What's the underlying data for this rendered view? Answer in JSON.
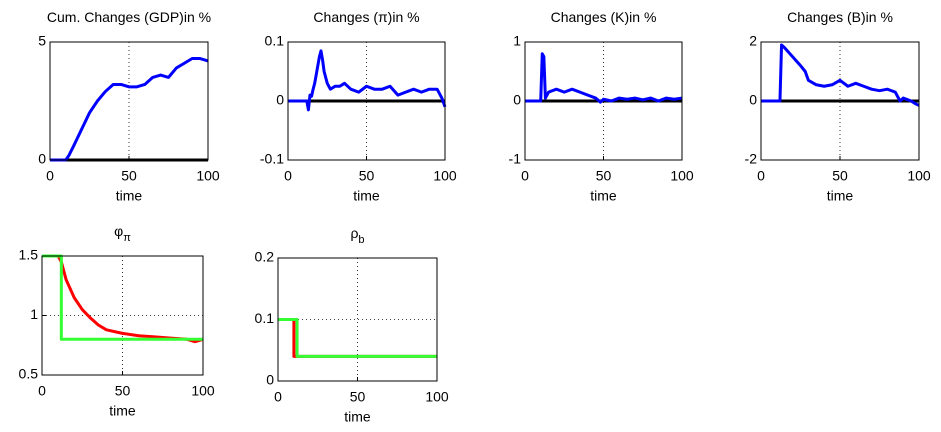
{
  "chart_data": [
    {
      "type": "line",
      "title": "Cum. Changes (GDP)in %",
      "xlabel": "time",
      "xlim": [
        0,
        100
      ],
      "xticks": [
        0,
        50,
        100
      ],
      "ylim": [
        0,
        5
      ],
      "yticks": [
        0,
        5
      ],
      "grid": true,
      "series": [
        {
          "color": "#000000",
          "x": [
            0,
            100
          ],
          "values": [
            0,
            0
          ]
        },
        {
          "color": "#0000ff",
          "x": [
            0,
            10,
            12,
            15,
            20,
            25,
            30,
            35,
            40,
            45,
            50,
            55,
            60,
            65,
            70,
            75,
            80,
            85,
            90,
            95,
            100
          ],
          "values": [
            0,
            0,
            0.2,
            0.6,
            1.3,
            2,
            2.5,
            2.9,
            3.2,
            3.2,
            3.1,
            3.1,
            3.2,
            3.5,
            3.6,
            3.5,
            3.9,
            4.1,
            4.3,
            4.3,
            4.2
          ]
        }
      ]
    },
    {
      "type": "line",
      "title": "Changes (π)in %",
      "xlabel": "time",
      "xlim": [
        0,
        100
      ],
      "xticks": [
        0,
        50,
        100
      ],
      "ylim": [
        -0.1,
        0.1
      ],
      "yticks": [
        -0.1,
        0,
        0.1
      ],
      "grid": true,
      "series": [
        {
          "color": "#000000",
          "x": [
            0,
            100
          ],
          "values": [
            0,
            0
          ]
        },
        {
          "color": "#0000ff",
          "x": [
            0,
            12,
            13,
            14,
            15,
            16,
            17,
            18,
            19,
            20,
            21,
            22,
            23,
            25,
            27,
            30,
            33,
            36,
            40,
            45,
            50,
            55,
            60,
            65,
            70,
            75,
            80,
            85,
            90,
            95,
            98,
            100
          ],
          "values": [
            0,
            0,
            -0.015,
            0.01,
            0.008,
            0.02,
            0.03,
            0.045,
            0.06,
            0.075,
            0.085,
            0.07,
            0.05,
            0.03,
            0.02,
            0.025,
            0.025,
            0.03,
            0.02,
            0.015,
            0.025,
            0.02,
            0.02,
            0.025,
            0.01,
            0.015,
            0.02,
            0.015,
            0.02,
            0.02,
            0.005,
            -0.01
          ]
        }
      ]
    },
    {
      "type": "line",
      "title": "Changes (K)in %",
      "xlabel": "time",
      "xlim": [
        0,
        100
      ],
      "xticks": [
        0,
        50,
        100
      ],
      "ylim": [
        -1,
        1
      ],
      "yticks": [
        -1,
        0,
        1
      ],
      "grid": true,
      "series": [
        {
          "color": "#000000",
          "x": [
            0,
            100
          ],
          "values": [
            0,
            0
          ]
        },
        {
          "color": "#0000ff",
          "x": [
            0,
            10,
            11,
            12,
            13,
            15,
            20,
            25,
            30,
            35,
            40,
            45,
            48,
            50,
            55,
            60,
            65,
            70,
            75,
            80,
            85,
            90,
            95,
            100
          ],
          "values": [
            0,
            0,
            0.8,
            0.75,
            0.05,
            0.15,
            0.2,
            0.15,
            0.2,
            0.15,
            0.1,
            0.05,
            -0.02,
            0.03,
            0,
            0.05,
            0.03,
            0.05,
            0.02,
            0.05,
            0,
            0.05,
            0.03,
            0.05
          ]
        }
      ]
    },
    {
      "type": "line",
      "title": "Changes (B)in %",
      "xlabel": "time",
      "xlim": [
        0,
        100
      ],
      "xticks": [
        0,
        50,
        100
      ],
      "ylim": [
        -2,
        2
      ],
      "yticks": [
        -2,
        0,
        2
      ],
      "grid": true,
      "series": [
        {
          "color": "#000000",
          "x": [
            0,
            100
          ],
          "values": [
            0,
            0
          ]
        },
        {
          "color": "#0000ff",
          "x": [
            0,
            12,
            13,
            15,
            20,
            25,
            28,
            30,
            35,
            40,
            45,
            50,
            55,
            60,
            65,
            70,
            75,
            80,
            85,
            88,
            90,
            95,
            98,
            100
          ],
          "values": [
            0,
            0,
            1.9,
            1.8,
            1.5,
            1.2,
            1,
            0.7,
            0.55,
            0.5,
            0.55,
            0.7,
            0.5,
            0.6,
            0.5,
            0.4,
            0.35,
            0.4,
            0.3,
            0,
            0.1,
            0,
            -0.1,
            -0.15
          ]
        }
      ]
    },
    {
      "type": "line",
      "title": "φ",
      "title_subscript": "π",
      "xlabel": "time",
      "xlim": [
        0,
        100
      ],
      "xticks": [
        0,
        50,
        100
      ],
      "ylim": [
        0.5,
        1.5
      ],
      "yticks": [
        0.5,
        1,
        1.5
      ],
      "grid": true,
      "series": [
        {
          "color": "#ff0000",
          "x": [
            0,
            10,
            12,
            15,
            20,
            25,
            30,
            35,
            40,
            50,
            60,
            70,
            80,
            90,
            95,
            100
          ],
          "values": [
            1.5,
            1.5,
            1.45,
            1.3,
            1.15,
            1.05,
            0.98,
            0.92,
            0.88,
            0.85,
            0.83,
            0.82,
            0.81,
            0.8,
            0.78,
            0.8
          ]
        },
        {
          "color": "#33ff33",
          "x": [
            0,
            12,
            12,
            100
          ],
          "values": [
            1.5,
            1.5,
            0.8,
            0.8
          ]
        }
      ]
    },
    {
      "type": "line",
      "title": "ρ",
      "title_subscript": "b",
      "xlabel": "time",
      "xlim": [
        0,
        100
      ],
      "xticks": [
        0,
        50,
        100
      ],
      "ylim": [
        0,
        0.2
      ],
      "yticks": [
        0,
        0.1,
        0.2
      ],
      "grid": true,
      "series": [
        {
          "color": "#ff0000",
          "x": [
            0,
            10,
            10,
            100
          ],
          "values": [
            0.1,
            0.1,
            0.04,
            0.04
          ]
        },
        {
          "color": "#33ff33",
          "x": [
            0,
            12,
            12,
            100
          ],
          "values": [
            0.1,
            0.1,
            0.04,
            0.04
          ]
        }
      ]
    }
  ]
}
